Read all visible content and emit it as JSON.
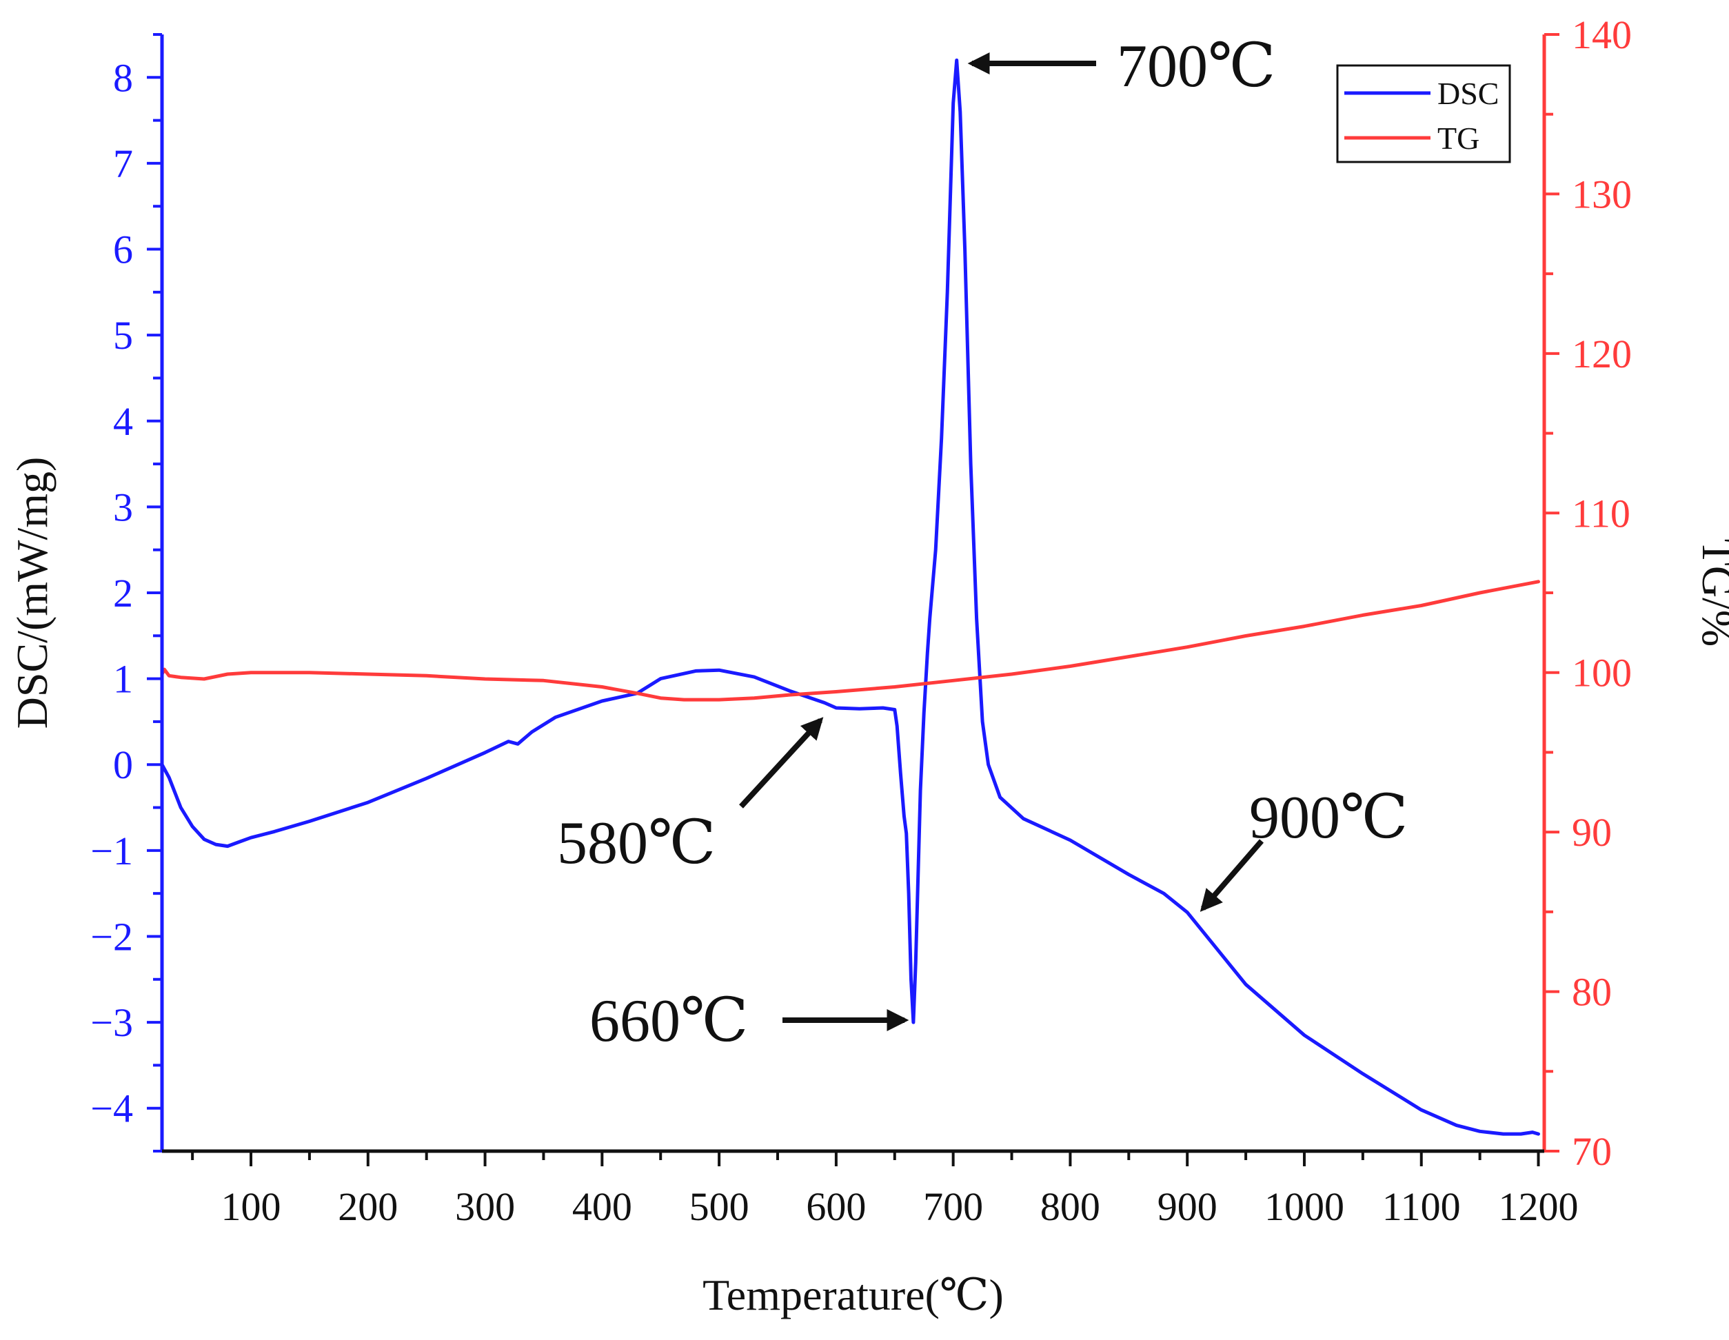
{
  "chart_data": {
    "type": "line",
    "title": "",
    "xlabel": "Temperature(℃)",
    "ylabel_left": "DSC/(mW/mg)",
    "ylabel_right": "TG/%",
    "xlim": [
      24,
      1205
    ],
    "ylim_left": [
      -4.5,
      8.5
    ],
    "ylim_right": [
      70,
      140
    ],
    "x_ticks": [
      100,
      200,
      300,
      400,
      500,
      600,
      700,
      800,
      900,
      1000,
      1100,
      1200
    ],
    "y_left_ticks": [
      -4,
      -3,
      -2,
      -1,
      0,
      1,
      2,
      3,
      4,
      5,
      6,
      7,
      8
    ],
    "y_left_tick_labels": [
      "−4",
      "−3",
      "−2",
      "−1",
      "0",
      "1",
      "2",
      "3",
      "4",
      "5",
      "6",
      "7",
      "8"
    ],
    "y_right_ticks": [
      70,
      80,
      90,
      100,
      110,
      120,
      130,
      140
    ],
    "legend": {
      "position": "top-right",
      "entries": [
        "DSC",
        "TG"
      ]
    },
    "colors": {
      "DSC": "#1a1aff",
      "TG": "#ff3b3b",
      "axis_left": "#1a1aff",
      "axis_right": "#ff3b3b",
      "axis_bottom": "#111111"
    },
    "series": [
      {
        "name": "DSC",
        "axis": "left",
        "x": [
          24,
          30,
          40,
          50,
          60,
          70,
          80,
          90,
          100,
          120,
          150,
          200,
          250,
          300,
          320,
          328,
          340,
          360,
          400,
          430,
          450,
          480,
          500,
          530,
          560,
          590,
          600,
          620,
          640,
          650,
          652,
          655,
          658,
          660,
          662,
          664,
          666,
          668,
          670,
          672,
          675,
          678,
          680,
          685,
          690,
          695,
          700,
          703,
          706,
          710,
          715,
          720,
          725,
          730,
          740,
          760,
          800,
          850,
          880,
          900,
          950,
          1000,
          1050,
          1100,
          1130,
          1150,
          1170,
          1185,
          1195,
          1200
        ],
        "y": [
          0.0,
          -0.15,
          -0.5,
          -0.72,
          -0.87,
          -0.93,
          -0.95,
          -0.9,
          -0.85,
          -0.78,
          -0.66,
          -0.44,
          -0.16,
          0.14,
          0.27,
          0.24,
          0.38,
          0.55,
          0.74,
          0.83,
          1.0,
          1.09,
          1.1,
          1.02,
          0.86,
          0.72,
          0.66,
          0.65,
          0.66,
          0.64,
          0.45,
          -0.1,
          -0.6,
          -0.8,
          -1.5,
          -2.5,
          -3.0,
          -2.3,
          -1.3,
          -0.3,
          0.6,
          1.3,
          1.7,
          2.5,
          3.8,
          5.5,
          7.7,
          8.2,
          7.6,
          6.0,
          3.5,
          1.7,
          0.5,
          0.0,
          -0.38,
          -0.63,
          -0.88,
          -1.28,
          -1.5,
          -1.72,
          -2.56,
          -3.15,
          -3.6,
          -4.02,
          -4.2,
          -4.27,
          -4.3,
          -4.3,
          -4.28,
          -4.3
        ]
      },
      {
        "name": "TG",
        "axis": "right",
        "x": [
          24,
          26,
          30,
          40,
          60,
          80,
          100,
          150,
          200,
          250,
          300,
          350,
          400,
          430,
          450,
          470,
          500,
          530,
          560,
          600,
          650,
          700,
          750,
          800,
          850,
          900,
          950,
          1000,
          1050,
          1100,
          1150,
          1200
        ],
        "y": [
          99.9,
          100.2,
          99.8,
          99.7,
          99.6,
          99.9,
          100.0,
          100.0,
          99.9,
          99.8,
          99.6,
          99.5,
          99.1,
          98.7,
          98.4,
          98.3,
          98.3,
          98.4,
          98.6,
          98.8,
          99.1,
          99.5,
          99.9,
          100.4,
          101.0,
          101.6,
          102.3,
          102.9,
          103.6,
          104.2,
          105.0,
          105.7
        ]
      }
    ],
    "annotations": [
      {
        "text": "700℃",
        "points_to": [
          706,
          8.2
        ]
      },
      {
        "text": "580℃",
        "points_to": [
          592,
          0.6
        ]
      },
      {
        "text": "660℃",
        "points_to": [
          664,
          -3.0
        ]
      },
      {
        "text": "900℃",
        "points_to": [
          895,
          -1.68
        ]
      }
    ]
  }
}
